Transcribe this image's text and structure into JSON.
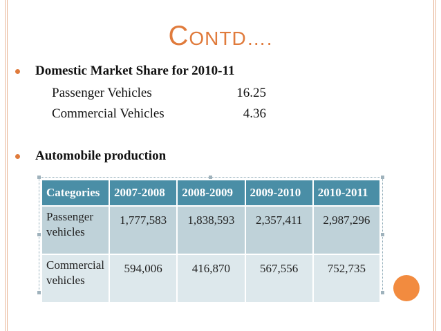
{
  "slide": {
    "title_first": "C",
    "title_rest": "ONTD….",
    "bullets": [
      {
        "label": "Domestic Market Share for 2010-11",
        "rows": [
          {
            "name": "Passenger Vehicles",
            "value": "16.25"
          },
          {
            "name": "Commercial Vehicles",
            "value": "4.36"
          }
        ]
      },
      {
        "label": "Automobile production"
      }
    ],
    "table": {
      "headers": [
        "Categories",
        "2007-2008",
        "2008-2009",
        "2009-2010",
        "2010-2011"
      ],
      "rows": [
        {
          "category": "Passenger vehicles",
          "values": [
            "1,777,583",
            "1,838,593",
            "2,357,411",
            "2,987,296"
          ]
        },
        {
          "category": "Commercial vehicles",
          "values": [
            "594,006",
            "416,870",
            "567,556",
            "752,735"
          ]
        }
      ]
    }
  },
  "colors": {
    "accent": "#e07b3c",
    "header": "#4a8ea6",
    "row_dark": "#bfd2d9",
    "row_light": "#dde8ec"
  }
}
